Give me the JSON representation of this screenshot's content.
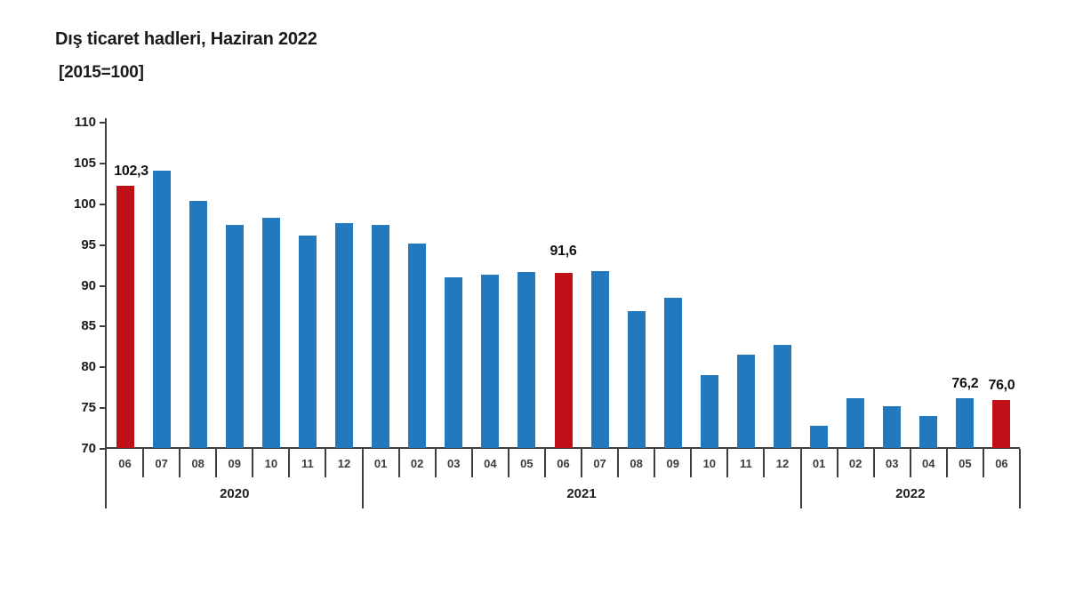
{
  "header": {
    "title": "Dış ticaret hadleri, Haziran 2022",
    "subtitle": "[2015=100]"
  },
  "colors": {
    "bar_blue": "#2379bd",
    "bar_red": "#bf1017",
    "axis": "#3f3f3f"
  },
  "chart_data": {
    "type": "bar",
    "title": "Dış ticaret hadleri, Haziran 2022",
    "subtitle": "[2015=100]",
    "ylabel": "",
    "xlabel": "",
    "ylim": [
      70,
      110
    ],
    "yticks": [
      110,
      105,
      100,
      95,
      90,
      85,
      80,
      75,
      70
    ],
    "grid": false,
    "legend": "none",
    "bar_color": "#2379bd",
    "highlight_color": "#bf1017",
    "year_groups": [
      {
        "label": "2020",
        "months": 7
      },
      {
        "label": "2021",
        "months": 12
      },
      {
        "label": "2022",
        "months": 6
      }
    ],
    "points": [
      {
        "month": "06",
        "year": "2020",
        "value": 102.3,
        "highlight": true,
        "label": "102,3",
        "label_dx": 7
      },
      {
        "month": "07",
        "year": "2020",
        "value": 104.1,
        "highlight": false
      },
      {
        "month": "08",
        "year": "2020",
        "value": 100.4,
        "highlight": false
      },
      {
        "month": "09",
        "year": "2020",
        "value": 97.5,
        "highlight": false
      },
      {
        "month": "10",
        "year": "2020",
        "value": 98.3,
        "highlight": false
      },
      {
        "month": "11",
        "year": "2020",
        "value": 96.2,
        "highlight": false
      },
      {
        "month": "12",
        "year": "2020",
        "value": 97.7,
        "highlight": false
      },
      {
        "month": "01",
        "year": "2021",
        "value": 97.5,
        "highlight": false
      },
      {
        "month": "02",
        "year": "2021",
        "value": 95.2,
        "highlight": false
      },
      {
        "month": "03",
        "year": "2021",
        "value": 91.0,
        "highlight": false
      },
      {
        "month": "04",
        "year": "2021",
        "value": 91.4,
        "highlight": false
      },
      {
        "month": "05",
        "year": "2021",
        "value": 91.7,
        "highlight": false
      },
      {
        "month": "06",
        "year": "2021",
        "value": 91.6,
        "highlight": true,
        "label": "91,6",
        "label_dy": -8
      },
      {
        "month": "07",
        "year": "2021",
        "value": 91.8,
        "highlight": false
      },
      {
        "month": "08",
        "year": "2021",
        "value": 86.9,
        "highlight": false
      },
      {
        "month": "09",
        "year": "2021",
        "value": 88.5,
        "highlight": false
      },
      {
        "month": "10",
        "year": "2021",
        "value": 79.1,
        "highlight": false
      },
      {
        "month": "11",
        "year": "2021",
        "value": 81.5,
        "highlight": false
      },
      {
        "month": "12",
        "year": "2021",
        "value": 82.8,
        "highlight": false
      },
      {
        "month": "01",
        "year": "2022",
        "value": 72.8,
        "highlight": false
      },
      {
        "month": "02",
        "year": "2022",
        "value": 76.2,
        "highlight": false
      },
      {
        "month": "03",
        "year": "2022",
        "value": 75.2,
        "highlight": false
      },
      {
        "month": "04",
        "year": "2022",
        "value": 74.0,
        "highlight": false
      },
      {
        "month": "05",
        "year": "2022",
        "value": 76.2,
        "highlight": false,
        "label": "76,2"
      },
      {
        "month": "06",
        "year": "2022",
        "value": 76.0,
        "highlight": true,
        "label": "76,0"
      }
    ]
  }
}
